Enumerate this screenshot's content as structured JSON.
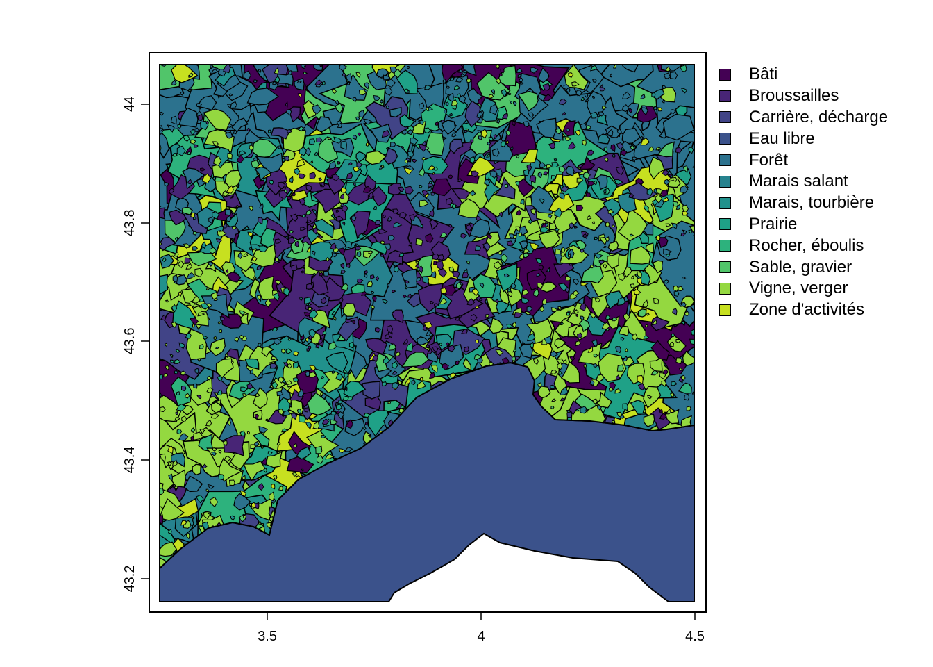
{
  "map": {
    "x_axis_ticks": [
      "3.5",
      "4",
      "4.5"
    ],
    "x_tick_values": [
      3.5,
      4.0,
      4.5
    ],
    "y_axis_ticks": [
      "43.2",
      "43.4",
      "43.6",
      "43.8",
      "44"
    ],
    "y_tick_values": [
      43.2,
      43.4,
      43.6,
      43.8,
      44.0
    ],
    "x_range": [
      3.22,
      4.5
    ],
    "y_range": [
      43.15,
      44.07
    ],
    "sea_color": "#3b528b",
    "outline_color": "#000000"
  },
  "legend": {
    "placement": "right",
    "items": [
      {
        "label": "Bâti",
        "color": "#440154"
      },
      {
        "label": "Broussailles",
        "color": "#482576"
      },
      {
        "label": "Carrière, décharge",
        "color": "#414487"
      },
      {
        "label": "Eau libre",
        "color": "#3b528b"
      },
      {
        "label": "Forêt",
        "color": "#2c728e"
      },
      {
        "label": "Marais salant",
        "color": "#26828e"
      },
      {
        "label": "Marais, tourbière",
        "color": "#21918c"
      },
      {
        "label": "Prairie",
        "color": "#1fa187"
      },
      {
        "label": "Rocher, éboulis",
        "color": "#2db27d"
      },
      {
        "label": "Sable, gravier",
        "color": "#51c56a"
      },
      {
        "label": "Vigne, verger",
        "color": "#94d840"
      },
      {
        "label": "Zone d'activités",
        "color": "#c7e020"
      }
    ]
  }
}
